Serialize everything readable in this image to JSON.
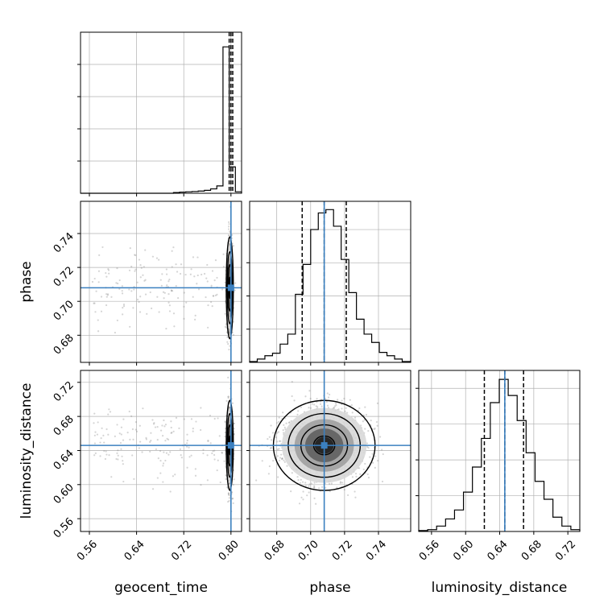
{
  "chart_data": {
    "type": "corner",
    "parameters": [
      "geocent_time",
      "phase",
      "luminosity_distance"
    ],
    "truths": [
      0.8,
      0.708,
      0.646
    ],
    "grid": true,
    "colors": {
      "truth": "#3b80c0",
      "hist": "#000000",
      "scatter": "#888888",
      "grid": "#b0b0b0"
    },
    "histograms": [
      {
        "name": "geocent_time",
        "bin_edges": [
          0.545,
          0.5555,
          0.566,
          0.5765,
          0.587,
          0.5975,
          0.608,
          0.6185,
          0.629,
          0.6395,
          0.65,
          0.6605,
          0.671,
          0.6815,
          0.692,
          0.7025,
          0.713,
          0.7235,
          0.734,
          0.7445,
          0.755,
          0.7655,
          0.776,
          0.7865,
          0.797,
          0.8075,
          0.818
        ],
        "counts": [
          0,
          0,
          0,
          0,
          0,
          0,
          0,
          0,
          0,
          0,
          0,
          0,
          0,
          0,
          0,
          0.5,
          0.8,
          1.0,
          1.2,
          1.5,
          2,
          3,
          5,
          100,
          18,
          1
        ],
        "quantiles": [
          0.797,
          0.8,
          0.803
        ],
        "ylim": [
          0,
          110
        ]
      },
      {
        "name": "phase",
        "bin_edges": [
          0.664,
          0.6685,
          0.673,
          0.6775,
          0.682,
          0.6865,
          0.691,
          0.6955,
          0.7,
          0.7045,
          0.709,
          0.7135,
          0.718,
          0.7225,
          0.727,
          0.7315,
          0.736,
          0.7405,
          0.745,
          0.7495,
          0.754,
          0.759
        ],
        "counts": [
          0.5,
          2,
          4,
          5.5,
          11,
          17,
          41,
          59,
          80,
          90,
          92,
          82,
          62,
          42,
          26,
          17,
          12,
          6,
          4,
          2,
          0.5
        ],
        "quantiles": [
          0.695,
          0.708,
          0.721
        ],
        "ylim": [
          0,
          97
        ]
      },
      {
        "name": "luminosity_distance",
        "bin_edges": [
          0.545,
          0.5555,
          0.566,
          0.5765,
          0.587,
          0.5975,
          0.608,
          0.6185,
          0.629,
          0.6395,
          0.65,
          0.6605,
          0.671,
          0.6815,
          0.692,
          0.7025,
          0.713,
          0.7235,
          0.734
        ],
        "counts": [
          0.5,
          1,
          3,
          7,
          12,
          22,
          36,
          52,
          72,
          85,
          76,
          62,
          44,
          28,
          18,
          8,
          3,
          1
        ],
        "quantiles": [
          0.622,
          0.646,
          0.668
        ],
        "ylim": [
          0,
          90
        ]
      }
    ],
    "axes": {
      "geocent_time": {
        "range": [
          0.545,
          0.818
        ],
        "ticks": [
          0.56,
          0.64,
          0.72,
          0.8
        ],
        "tick_labels": [
          "0.56",
          "0.64",
          "0.72",
          "0.80"
        ]
      },
      "phase": {
        "range": [
          0.664,
          0.759
        ],
        "ticks": [
          0.68,
          0.7,
          0.72,
          0.74
        ],
        "tick_labels": [
          "0.68",
          "0.70",
          "0.72",
          "0.74"
        ]
      },
      "luminosity_distance": {
        "range": [
          0.545,
          0.734
        ],
        "ticks": [
          0.56,
          0.6,
          0.64,
          0.68,
          0.72
        ],
        "tick_labels": [
          "0.56",
          "0.60",
          "0.64",
          "0.68",
          "0.72"
        ]
      }
    },
    "axis_labels": {
      "x": [
        "geocent_time",
        "phase",
        "luminosity_distance"
      ],
      "y": [
        "phase",
        "luminosity_distance"
      ]
    },
    "posterior": {
      "means": [
        0.798,
        0.708,
        0.646
      ],
      "sigmas": [
        0.0025,
        0.0125,
        0.022
      ],
      "tail_fraction": 0.04
    }
  }
}
